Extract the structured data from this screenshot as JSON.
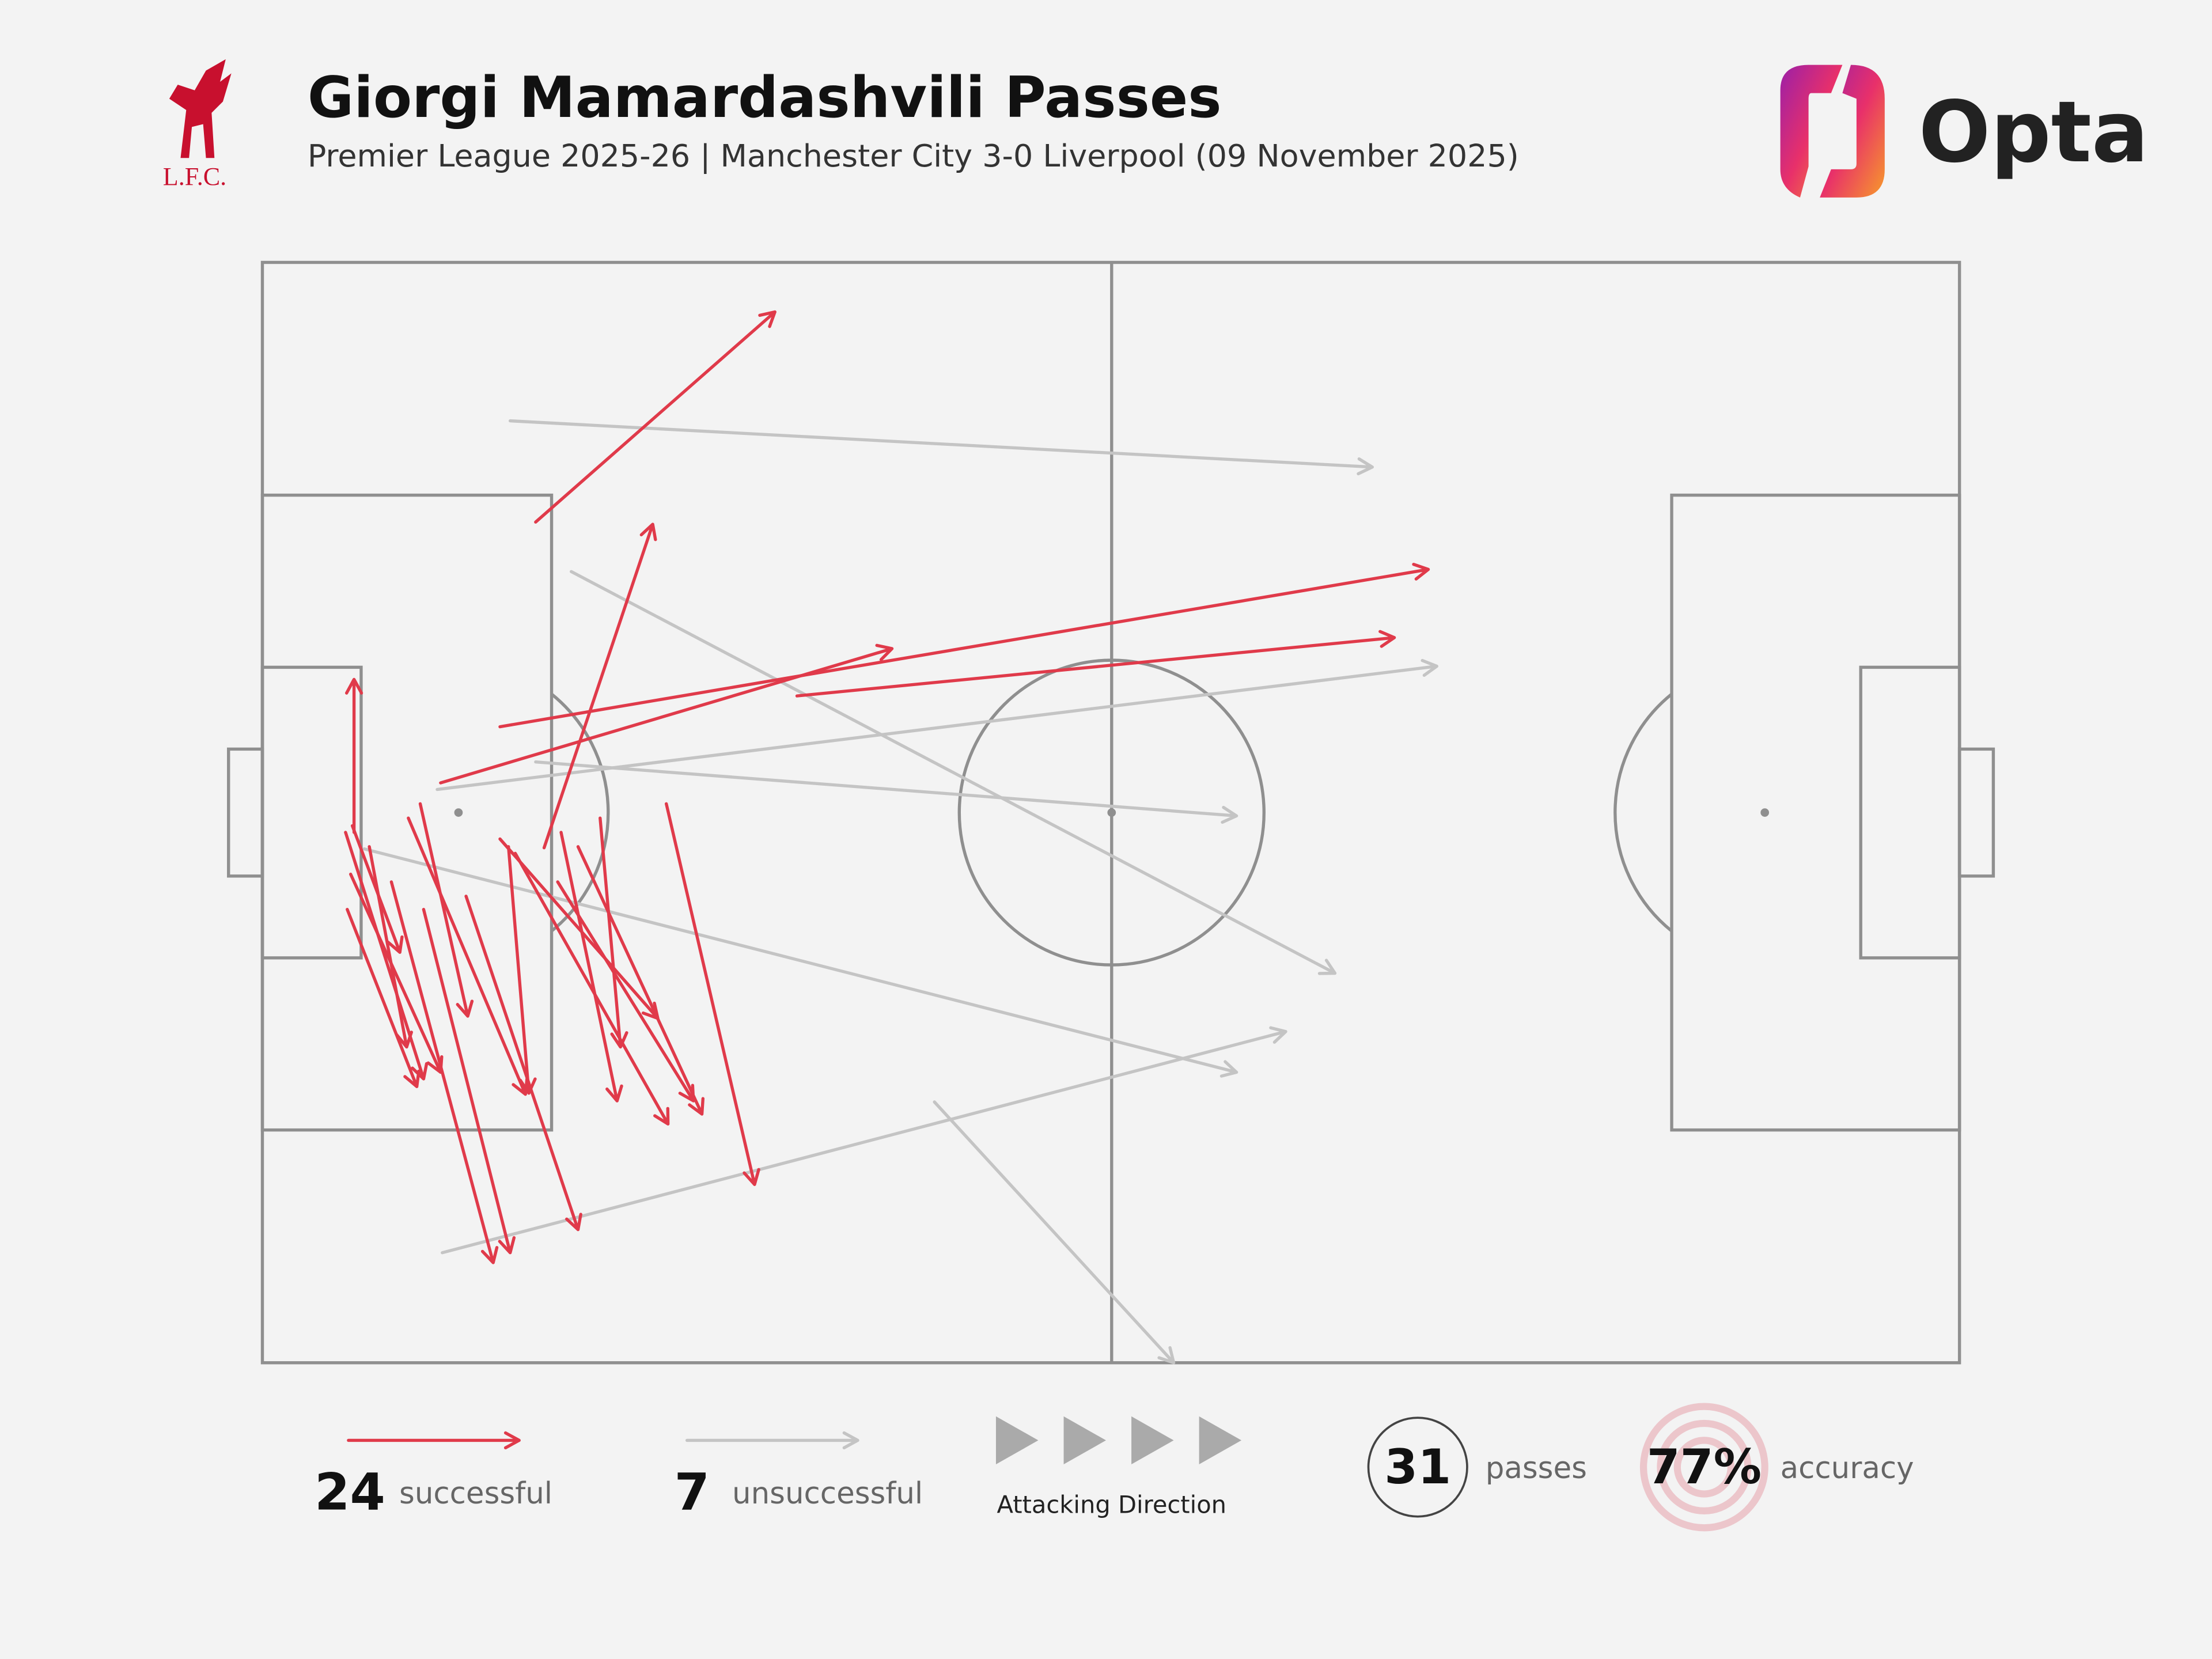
{
  "chart_data": {
    "type": "pass-map",
    "title": "Giorgi Mamardashvili Passes",
    "subtitle": "Premier League 2025-26 | Manchester City 3-0 Liverpool (09 November 2025)",
    "club_logo_text": "L.F.C.",
    "brand": "Opta",
    "xlim": [
      0,
      100
    ],
    "ylim": [
      0,
      100
    ],
    "direction_label": "Attacking Direction",
    "series": [
      {
        "name": "successful",
        "color": "#e03a4a",
        "count": 24,
        "passes": [
          {
            "x": 16.1,
            "y": 76.4,
            "end_x": 30.2,
            "end_y": 95.5
          },
          {
            "x": 10.5,
            "y": 52.7,
            "end_x": 37.1,
            "end_y": 64.9
          },
          {
            "x": 14.0,
            "y": 57.8,
            "end_x": 68.7,
            "end_y": 72.1
          },
          {
            "x": 31.5,
            "y": 60.6,
            "end_x": 66.7,
            "end_y": 65.9
          },
          {
            "x": 16.6,
            "y": 46.8,
            "end_x": 23.0,
            "end_y": 76.2
          },
          {
            "x": 5.4,
            "y": 48.2,
            "end_x": 5.4,
            "end_y": 62.1
          },
          {
            "x": 9.3,
            "y": 50.8,
            "end_x": 12.1,
            "end_y": 31.5
          },
          {
            "x": 8.6,
            "y": 49.5,
            "end_x": 15.5,
            "end_y": 24.4
          },
          {
            "x": 14.0,
            "y": 47.6,
            "end_x": 23.3,
            "end_y": 31.3
          },
          {
            "x": 14.9,
            "y": 46.3,
            "end_x": 23.9,
            "end_y": 21.7
          },
          {
            "x": 17.6,
            "y": 48.2,
            "end_x": 20.9,
            "end_y": 23.8
          },
          {
            "x": 18.6,
            "y": 46.9,
            "end_x": 25.9,
            "end_y": 22.6
          },
          {
            "x": 19.9,
            "y": 49.5,
            "end_x": 21.1,
            "end_y": 28.7
          },
          {
            "x": 17.4,
            "y": 43.7,
            "end_x": 25.4,
            "end_y": 23.8
          },
          {
            "x": 23.8,
            "y": 50.8,
            "end_x": 29.0,
            "end_y": 16.2
          },
          {
            "x": 5.3,
            "y": 48.8,
            "end_x": 8.1,
            "end_y": 37.3
          },
          {
            "x": 4.9,
            "y": 48.2,
            "end_x": 9.5,
            "end_y": 25.8
          },
          {
            "x": 5.2,
            "y": 44.4,
            "end_x": 10.5,
            "end_y": 26.4
          },
          {
            "x": 5.0,
            "y": 41.2,
            "end_x": 9.1,
            "end_y": 25.1
          },
          {
            "x": 6.3,
            "y": 46.9,
            "end_x": 8.5,
            "end_y": 28.7
          },
          {
            "x": 7.6,
            "y": 43.7,
            "end_x": 13.6,
            "end_y": 9.1
          },
          {
            "x": 9.5,
            "y": 41.2,
            "end_x": 14.6,
            "end_y": 10.0
          },
          {
            "x": 12.0,
            "y": 42.4,
            "end_x": 18.6,
            "end_y": 12.1
          },
          {
            "x": 14.5,
            "y": 46.9,
            "end_x": 15.7,
            "end_y": 24.5
          }
        ]
      },
      {
        "name": "unsuccessful",
        "color": "#c4c4c4",
        "count": 7,
        "passes": [
          {
            "x": 14.6,
            "y": 85.6,
            "end_x": 65.4,
            "end_y": 81.4
          },
          {
            "x": 18.2,
            "y": 71.9,
            "end_x": 63.2,
            "end_y": 35.4
          },
          {
            "x": 10.3,
            "y": 52.1,
            "end_x": 69.2,
            "end_y": 63.3
          },
          {
            "x": 16.1,
            "y": 54.6,
            "end_x": 57.4,
            "end_y": 49.7
          },
          {
            "x": 6.0,
            "y": 46.7,
            "end_x": 57.4,
            "end_y": 26.4
          },
          {
            "x": 10.6,
            "y": 10.0,
            "end_x": 60.3,
            "end_y": 30.1
          },
          {
            "x": 39.6,
            "y": 23.7,
            "end_x": 53.7,
            "end_y": 0.0
          }
        ]
      }
    ],
    "total": {
      "value": 31,
      "label": "passes"
    },
    "accuracy": {
      "value": 77,
      "value_label": "77%",
      "label": "accuracy"
    }
  }
}
